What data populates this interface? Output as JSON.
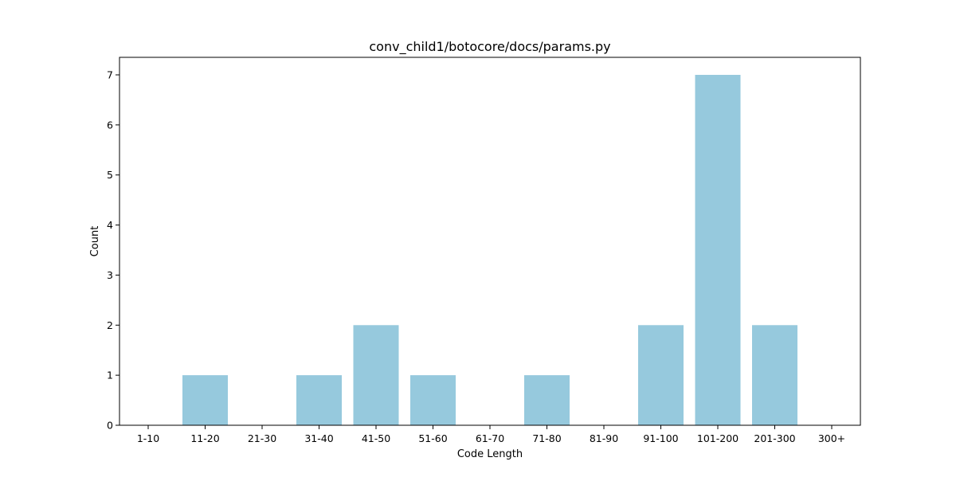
{
  "chart_data": {
    "type": "bar",
    "title": "conv_child1/botocore/docs/params.py",
    "xlabel": "Code Length",
    "ylabel": "Count",
    "categories": [
      "1-10",
      "11-20",
      "21-30",
      "31-40",
      "41-50",
      "51-60",
      "61-70",
      "71-80",
      "81-90",
      "91-100",
      "101-200",
      "201-300",
      "300+"
    ],
    "values": [
      0,
      1,
      0,
      1,
      2,
      1,
      0,
      1,
      0,
      2,
      7,
      2,
      0
    ],
    "ylim": [
      0,
      7.35
    ],
    "yticks": [
      0,
      1,
      2,
      3,
      4,
      5,
      6,
      7
    ],
    "grid": false,
    "legend": "none",
    "bar_color": "#96c9dd"
  }
}
